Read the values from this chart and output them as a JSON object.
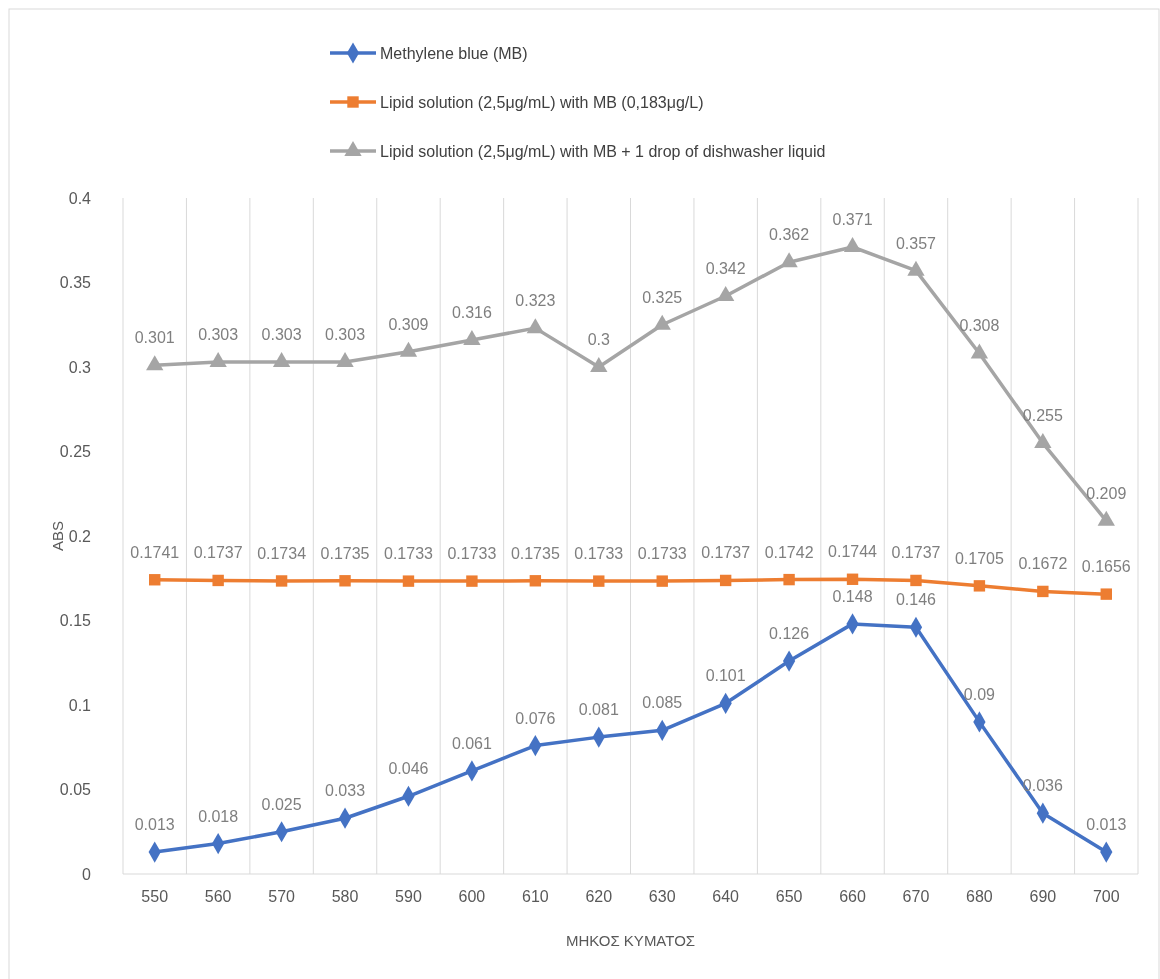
{
  "chart_data": {
    "type": "line",
    "xlabel": "ΜΗΚΟΣ ΚΥΜΑΤΟΣ",
    "ylabel": "ABS",
    "categories": [
      "550",
      "560",
      "570",
      "580",
      "590",
      "600",
      "610",
      "620",
      "630",
      "640",
      "650",
      "660",
      "670",
      "680",
      "690",
      "700"
    ],
    "ylim": [
      0,
      0.4
    ],
    "yticks": [
      0,
      0.05,
      0.1,
      0.15,
      0.2,
      0.25,
      0.3,
      0.35,
      0.4
    ],
    "grid": "x",
    "legend": "top",
    "data_labels": true,
    "line_style": "solid",
    "series": [
      {
        "name": "Methylene blue (MB)",
        "color": "#4472c4",
        "marker": "diamond",
        "values": [
          0.013,
          0.018,
          0.025,
          0.033,
          0.046,
          0.061,
          0.076,
          0.081,
          0.085,
          0.101,
          0.126,
          0.148,
          0.146,
          0.09,
          0.036,
          0.013
        ]
      },
      {
        "name": "Lipid solution (2,5μg/mL) with MB (0,183μg/L)",
        "color": "#ed7d31",
        "marker": "square",
        "values": [
          0.1741,
          0.1737,
          0.1734,
          0.1735,
          0.1733,
          0.1733,
          0.1735,
          0.1733,
          0.1733,
          0.1737,
          0.1742,
          0.1744,
          0.1737,
          0.1705,
          0.1672,
          0.1656
        ]
      },
      {
        "name": "Lipid solution (2,5μg/mL) with MB + 1 drop of dishwasher liquid",
        "color": "#a5a5a5",
        "marker": "triangle",
        "values": [
          0.301,
          0.303,
          0.303,
          0.303,
          0.309,
          0.316,
          0.323,
          0.3,
          0.325,
          0.342,
          0.362,
          0.371,
          0.357,
          0.308,
          0.255,
          0.209
        ]
      }
    ]
  }
}
